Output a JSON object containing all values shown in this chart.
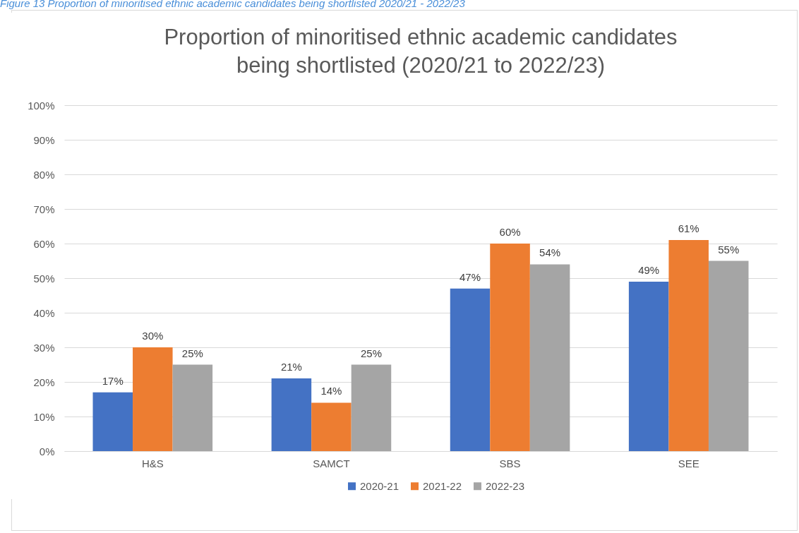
{
  "chart_data": {
    "type": "bar",
    "title": "Proportion of minoritised ethnic academic candidates being shortlisted (2020/21 to 2022/23)",
    "annotations": [
      "Figure 13 Proportion of minoritised ethnic academic candidates being shortlisted 2020/21 - 2022/23"
    ],
    "categories": [
      "H&S",
      "SAMCT",
      "SBS",
      "SEE"
    ],
    "series": [
      {
        "name": "2020-21",
        "color": "#4472c4",
        "values": [
          17,
          21,
          47,
          49
        ],
        "value_labels": [
          "17%",
          "21%",
          "47%",
          "49%"
        ]
      },
      {
        "name": "2021-22",
        "color": "#ed7d31",
        "values": [
          30,
          14,
          60,
          61
        ],
        "value_labels": [
          "30%",
          "14%",
          "60%",
          "61%"
        ]
      },
      {
        "name": "2022-23",
        "color": "#a5a5a5",
        "values": [
          25,
          25,
          54,
          55
        ],
        "value_labels": [
          "25%",
          "25%",
          "54%",
          "55%"
        ]
      }
    ],
    "ylim": [
      0,
      100
    ],
    "yticks": [
      {
        "value": 0,
        "label": "0%"
      },
      {
        "value": 10,
        "label": "10%"
      },
      {
        "value": 20,
        "label": "20%"
      },
      {
        "value": 30,
        "label": "30%"
      },
      {
        "value": 40,
        "label": "40%"
      },
      {
        "value": 50,
        "label": "50%"
      },
      {
        "value": 60,
        "label": "60%"
      },
      {
        "value": 70,
        "label": "70%"
      },
      {
        "value": 80,
        "label": "80%"
      },
      {
        "value": 90,
        "label": "90%"
      },
      {
        "value": 100,
        "label": "100%"
      }
    ],
    "grid": "y",
    "legend": "bottom"
  }
}
